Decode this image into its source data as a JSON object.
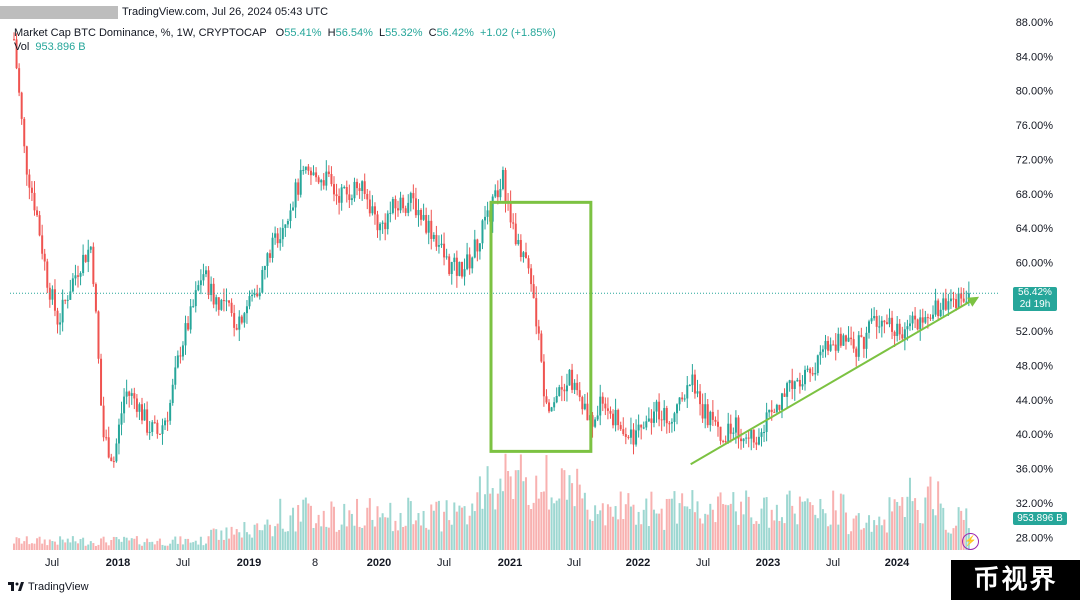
{
  "header": {
    "site_text": "TradingView.com, Jul 26, 2024 05:43 UTC",
    "symbol": "Market Cap BTC Dominance, %, 1W, CRYPTOCAP",
    "open_label": "O",
    "open_value": "55.41%",
    "high_label": "H",
    "high_value": "56.54%",
    "low_label": "L",
    "low_value": "55.32%",
    "close_label": "C",
    "close_value": "56.42%",
    "change": "+1.02 (+1.85%)",
    "vol_label": "Vol",
    "vol_value": "953.896 B"
  },
  "price_axis": [
    "88.00%",
    "84.00%",
    "80.00%",
    "76.00%",
    "72.00%",
    "68.00%",
    "64.00%",
    "60.00%",
    "56.00%",
    "52.00%",
    "48.00%",
    "44.00%",
    "40.00%",
    "36.00%",
    "32.00%",
    "28.00%"
  ],
  "time_axis": [
    {
      "label": "Jul",
      "bold": false
    },
    {
      "label": "2018",
      "bold": true
    },
    {
      "label": "Jul",
      "bold": false
    },
    {
      "label": "2019",
      "bold": true
    },
    {
      "label": "8",
      "bold": false
    },
    {
      "label": "2020",
      "bold": true
    },
    {
      "label": "Jul",
      "bold": false
    },
    {
      "label": "2021",
      "bold": true
    },
    {
      "label": "Jul",
      "bold": false
    },
    {
      "label": "2022",
      "bold": true
    },
    {
      "label": "Jul",
      "bold": false
    },
    {
      "label": "2023",
      "bold": true
    },
    {
      "label": "Jul",
      "bold": false
    },
    {
      "label": "2024",
      "bold": true
    }
  ],
  "price_tag": {
    "value": "56.42%",
    "countdown": "2d 19h"
  },
  "vol_tag": "953.896 B",
  "footer": {
    "brand": "TradingView"
  },
  "watermark": "币视界",
  "colors": {
    "up": "#26a69a",
    "down": "#ef5350",
    "annotation": "#7cc242",
    "accent": "#26a69a"
  },
  "chart_data": {
    "type": "candlestick",
    "timeframe": "1W",
    "y_unit": "%",
    "ylim": [
      26,
      89
    ],
    "x_range": [
      "2017-05",
      "2024-07"
    ],
    "last_close": 56.42,
    "close_series": [
      {
        "t": "2017-05",
        "v": 86
      },
      {
        "t": "2017-06",
        "v": 72
      },
      {
        "t": "2017-07",
        "v": 66
      },
      {
        "t": "2017-08",
        "v": 58
      },
      {
        "t": "2017-09",
        "v": 53
      },
      {
        "t": "2017-10",
        "v": 57
      },
      {
        "t": "2017-11",
        "v": 60
      },
      {
        "t": "2017-12",
        "v": 62
      },
      {
        "t": "2018-01",
        "v": 40
      },
      {
        "t": "2018-02",
        "v": 37
      },
      {
        "t": "2018-03",
        "v": 45
      },
      {
        "t": "2018-04",
        "v": 44
      },
      {
        "t": "2018-05",
        "v": 41
      },
      {
        "t": "2018-06",
        "v": 40
      },
      {
        "t": "2018-07",
        "v": 43
      },
      {
        "t": "2018-08",
        "v": 50
      },
      {
        "t": "2018-09",
        "v": 54
      },
      {
        "t": "2018-10",
        "v": 59
      },
      {
        "t": "2018-11",
        "v": 56
      },
      {
        "t": "2018-12",
        "v": 55
      },
      {
        "t": "2019-01",
        "v": 53
      },
      {
        "t": "2019-02",
        "v": 55
      },
      {
        "t": "2019-03",
        "v": 57
      },
      {
        "t": "2019-04",
        "v": 61
      },
      {
        "t": "2019-05",
        "v": 64
      },
      {
        "t": "2019-06",
        "v": 67
      },
      {
        "t": "2019-07",
        "v": 70
      },
      {
        "t": "2019-08",
        "v": 70
      },
      {
        "t": "2019-09",
        "v": 70
      },
      {
        "t": "2019-10",
        "v": 68
      },
      {
        "t": "2019-11",
        "v": 68
      },
      {
        "t": "2019-12",
        "v": 69
      },
      {
        "t": "2020-01",
        "v": 67
      },
      {
        "t": "2020-02",
        "v": 64
      },
      {
        "t": "2020-03",
        "v": 66
      },
      {
        "t": "2020-04",
        "v": 67
      },
      {
        "t": "2020-05",
        "v": 67
      },
      {
        "t": "2020-06",
        "v": 65
      },
      {
        "t": "2020-07",
        "v": 63
      },
      {
        "t": "2020-08",
        "v": 60
      },
      {
        "t": "2020-09",
        "v": 59
      },
      {
        "t": "2020-10",
        "v": 60
      },
      {
        "t": "2020-11",
        "v": 63
      },
      {
        "t": "2020-12",
        "v": 66
      },
      {
        "t": "2021-01",
        "v": 70
      },
      {
        "t": "2021-02",
        "v": 64
      },
      {
        "t": "2021-03",
        "v": 61
      },
      {
        "t": "2021-04",
        "v": 54
      },
      {
        "t": "2021-05",
        "v": 43
      },
      {
        "t": "2021-06",
        "v": 45
      },
      {
        "t": "2021-07",
        "v": 47
      },
      {
        "t": "2021-08",
        "v": 44
      },
      {
        "t": "2021-09",
        "v": 41
      },
      {
        "t": "2021-10",
        "v": 44
      },
      {
        "t": "2021-11",
        "v": 42
      },
      {
        "t": "2021-12",
        "v": 40
      },
      {
        "t": "2022-01",
        "v": 40
      },
      {
        "t": "2022-02",
        "v": 42
      },
      {
        "t": "2022-03",
        "v": 43
      },
      {
        "t": "2022-04",
        "v": 42
      },
      {
        "t": "2022-05",
        "v": 44
      },
      {
        "t": "2022-06",
        "v": 47
      },
      {
        "t": "2022-07",
        "v": 43
      },
      {
        "t": "2022-08",
        "v": 41
      },
      {
        "t": "2022-09",
        "v": 40
      },
      {
        "t": "2022-10",
        "v": 41
      },
      {
        "t": "2022-11",
        "v": 40
      },
      {
        "t": "2022-12",
        "v": 40
      },
      {
        "t": "2023-01",
        "v": 42
      },
      {
        "t": "2023-02",
        "v": 44
      },
      {
        "t": "2023-03",
        "v": 46
      },
      {
        "t": "2023-04",
        "v": 47
      },
      {
        "t": "2023-05",
        "v": 47
      },
      {
        "t": "2023-06",
        "v": 50
      },
      {
        "t": "2023-07",
        "v": 51
      },
      {
        "t": "2023-08",
        "v": 50
      },
      {
        "t": "2023-09",
        "v": 50
      },
      {
        "t": "2023-10",
        "v": 52
      },
      {
        "t": "2023-11",
        "v": 53
      },
      {
        "t": "2023-12",
        "v": 53
      },
      {
        "t": "2024-01",
        "v": 52
      },
      {
        "t": "2024-02",
        "v": 53
      },
      {
        "t": "2024-03",
        "v": 54
      },
      {
        "t": "2024-04",
        "v": 55
      },
      {
        "t": "2024-05",
        "v": 55
      },
      {
        "t": "2024-06",
        "v": 56
      },
      {
        "t": "2024-07",
        "v": 56.42
      }
    ],
    "annotations": {
      "box": {
        "x_from": "2020-12",
        "x_to": "2021-09",
        "y_from": 38,
        "y_to": 67
      },
      "trend_arrow": {
        "from": {
          "t": "2022-06",
          "v": 36.5
        },
        "to": {
          "t": "2024-08",
          "v": 56
        }
      }
    }
  }
}
